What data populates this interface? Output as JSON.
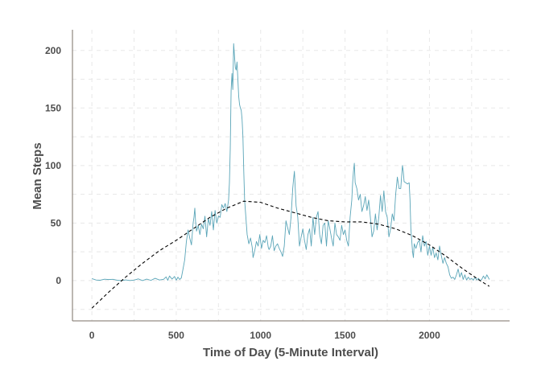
{
  "chart_data": {
    "type": "line",
    "title": "",
    "xlabel": "Time of Day (5-Minute Interval)",
    "ylabel": "Mean Steps",
    "xlim": [
      -115,
      2475
    ],
    "ylim": [
      -35,
      218
    ],
    "xticks": [
      0,
      500,
      1000,
      1500,
      2000
    ],
    "yticks": [
      0,
      50,
      100,
      150,
      200
    ],
    "grid": true,
    "legend": "none",
    "colors": {
      "observed": "#5aa5b8",
      "smooth": "#000000",
      "grid": "#e8e8e8",
      "axis": "#7a6f66",
      "text": "#4d4d4d"
    },
    "series": [
      {
        "style": "solid",
        "points": [
          [
            0,
            1.7
          ],
          [
            25,
            0.5
          ],
          [
            50,
            0.3
          ],
          [
            75,
            1.2
          ],
          [
            100,
            0.9
          ],
          [
            125,
            1.1
          ],
          [
            150,
            0.3
          ],
          [
            175,
            0.0
          ],
          [
            200,
            0.6
          ],
          [
            225,
            0.1
          ],
          [
            250,
            0.4
          ],
          [
            275,
            1.5
          ],
          [
            300,
            0.0
          ],
          [
            325,
            1.3
          ],
          [
            350,
            0.2
          ],
          [
            375,
            2.0
          ],
          [
            400,
            0.5
          ],
          [
            425,
            1.1
          ],
          [
            440,
            3.2
          ],
          [
            450,
            0.2
          ],
          [
            460,
            4.0
          ],
          [
            475,
            1.3
          ],
          [
            490,
            3.6
          ],
          [
            500,
            0.3
          ],
          [
            510,
            3.0
          ],
          [
            520,
            1.0
          ],
          [
            530,
            2.3
          ],
          [
            540,
            10.0
          ],
          [
            550,
            18.0
          ],
          [
            560,
            34.0
          ],
          [
            570,
            44.0
          ],
          [
            580,
            37.0
          ],
          [
            590,
            31.0
          ],
          [
            600,
            50.0
          ],
          [
            605,
            55.0
          ],
          [
            610,
            63.0
          ],
          [
            615,
            50.0
          ],
          [
            620,
            43.0
          ],
          [
            630,
            48.0
          ],
          [
            640,
            40.0
          ],
          [
            650,
            49.0
          ],
          [
            660,
            45.0
          ],
          [
            670,
            56.0
          ],
          [
            680,
            38.0
          ],
          [
            690,
            54.0
          ],
          [
            700,
            48.0
          ],
          [
            710,
            60.0
          ],
          [
            720,
            44.0
          ],
          [
            730,
            61.0
          ],
          [
            740,
            50.0
          ],
          [
            750,
            56.0
          ],
          [
            760,
            55.0
          ],
          [
            770,
            66.0
          ],
          [
            780,
            63.0
          ],
          [
            790,
            67.0
          ],
          [
            800,
            60.0
          ],
          [
            810,
            70.0
          ],
          [
            815,
            85.0
          ],
          [
            820,
            115.0
          ],
          [
            825,
            165.0
          ],
          [
            830,
            180.0
          ],
          [
            835,
            166.0
          ],
          [
            840,
            206.0
          ],
          [
            845,
            195.0
          ],
          [
            850,
            185.0
          ],
          [
            855,
            183.0
          ],
          [
            860,
            190.0
          ],
          [
            865,
            175.0
          ],
          [
            870,
            160.0
          ],
          [
            875,
            153.0
          ],
          [
            880,
            150.0
          ],
          [
            885,
            148.0
          ],
          [
            890,
            140.0
          ],
          [
            895,
            125.0
          ],
          [
            900,
            95.0
          ],
          [
            905,
            70.0
          ],
          [
            910,
            60.0
          ],
          [
            915,
            50.0
          ],
          [
            920,
            40.0
          ],
          [
            930,
            32.0
          ],
          [
            940,
            37.0
          ],
          [
            950,
            29.0
          ],
          [
            955,
            20.0
          ],
          [
            965,
            26.0
          ],
          [
            975,
            34.0
          ],
          [
            985,
            30.0
          ],
          [
            995,
            40.0
          ],
          [
            1005,
            28.0
          ],
          [
            1015,
            35.0
          ],
          [
            1025,
            33.0
          ],
          [
            1035,
            39.0
          ],
          [
            1045,
            29.0
          ],
          [
            1050,
            27.0
          ],
          [
            1060,
            30.0
          ],
          [
            1070,
            39.0
          ],
          [
            1080,
            26.0
          ],
          [
            1090,
            30.0
          ],
          [
            1100,
            32.0
          ],
          [
            1110,
            28.0
          ],
          [
            1120,
            25.0
          ],
          [
            1130,
            21.0
          ],
          [
            1140,
            30.0
          ],
          [
            1150,
            52.0
          ],
          [
            1160,
            46.0
          ],
          [
            1170,
            40.0
          ],
          [
            1180,
            55.0
          ],
          [
            1190,
            80.0
          ],
          [
            1195,
            88.0
          ],
          [
            1200,
            95.0
          ],
          [
            1205,
            80.0
          ],
          [
            1210,
            65.0
          ],
          [
            1220,
            55.0
          ],
          [
            1230,
            30.0
          ],
          [
            1240,
            38.0
          ],
          [
            1250,
            45.0
          ],
          [
            1260,
            35.0
          ],
          [
            1270,
            27.0
          ],
          [
            1280,
            40.0
          ],
          [
            1290,
            45.0
          ],
          [
            1300,
            30.0
          ],
          [
            1310,
            55.0
          ],
          [
            1320,
            40.0
          ],
          [
            1330,
            55.0
          ],
          [
            1340,
            60.0
          ],
          [
            1350,
            40.0
          ],
          [
            1360,
            32.0
          ],
          [
            1370,
            48.0
          ],
          [
            1380,
            50.0
          ],
          [
            1390,
            30.0
          ],
          [
            1400,
            52.0
          ],
          [
            1410,
            45.0
          ],
          [
            1420,
            37.0
          ],
          [
            1430,
            30.0
          ],
          [
            1440,
            50.0
          ],
          [
            1450,
            40.0
          ],
          [
            1460,
            38.0
          ],
          [
            1470,
            35.0
          ],
          [
            1480,
            48.0
          ],
          [
            1490,
            40.0
          ],
          [
            1500,
            44.0
          ],
          [
            1510,
            35.0
          ],
          [
            1520,
            30.0
          ],
          [
            1530,
            55.0
          ],
          [
            1540,
            70.0
          ],
          [
            1545,
            85.0
          ],
          [
            1550,
            95.0
          ],
          [
            1555,
            102.0
          ],
          [
            1560,
            85.0
          ],
          [
            1570,
            80.0
          ],
          [
            1580,
            70.0
          ],
          [
            1590,
            75.0
          ],
          [
            1600,
            60.0
          ],
          [
            1610,
            65.0
          ],
          [
            1620,
            73.0
          ],
          [
            1630,
            61.0
          ],
          [
            1640,
            70.0
          ],
          [
            1650,
            55.0
          ],
          [
            1660,
            38.0
          ],
          [
            1670,
            43.0
          ],
          [
            1680,
            58.0
          ],
          [
            1690,
            44.0
          ],
          [
            1700,
            55.0
          ],
          [
            1710,
            74.0
          ],
          [
            1720,
            60.0
          ],
          [
            1730,
            78.0
          ],
          [
            1740,
            60.0
          ],
          [
            1750,
            55.0
          ],
          [
            1760,
            38.0
          ],
          [
            1770,
            45.0
          ],
          [
            1780,
            58.0
          ],
          [
            1790,
            52.0
          ],
          [
            1800,
            75.0
          ],
          [
            1810,
            90.0
          ],
          [
            1820,
            80.0
          ],
          [
            1830,
            80.0
          ],
          [
            1840,
            100.0
          ],
          [
            1845,
            95.0
          ],
          [
            1850,
            86.0
          ],
          [
            1860,
            85.0
          ],
          [
            1870,
            84.0
          ],
          [
            1880,
            85.0
          ],
          [
            1885,
            70.0
          ],
          [
            1890,
            45.0
          ],
          [
            1895,
            35.0
          ],
          [
            1900,
            25.0
          ],
          [
            1905,
            20.0
          ],
          [
            1910,
            32.0
          ],
          [
            1920,
            28.0
          ],
          [
            1930,
            33.0
          ],
          [
            1940,
            35.0
          ],
          [
            1950,
            25.0
          ],
          [
            1960,
            39.0
          ],
          [
            1970,
            30.0
          ],
          [
            1980,
            34.0
          ],
          [
            1990,
            22.0
          ],
          [
            2000,
            30.0
          ],
          [
            2010,
            22.0
          ],
          [
            2020,
            29.0
          ],
          [
            2030,
            20.0
          ],
          [
            2040,
            24.0
          ],
          [
            2050,
            18.0
          ],
          [
            2060,
            30.0
          ],
          [
            2070,
            22.0
          ],
          [
            2080,
            15.0
          ],
          [
            2090,
            20.0
          ],
          [
            2100,
            15.0
          ],
          [
            2110,
            12.0
          ],
          [
            2120,
            5.0
          ],
          [
            2130,
            2.0
          ],
          [
            2140,
            3.0
          ],
          [
            2150,
            1.0
          ],
          [
            2160,
            5.0
          ],
          [
            2170,
            10.0
          ],
          [
            2180,
            3.0
          ],
          [
            2190,
            7.0
          ],
          [
            2200,
            1.0
          ],
          [
            2210,
            5.0
          ],
          [
            2220,
            0.5
          ],
          [
            2230,
            3.0
          ],
          [
            2240,
            1.0
          ],
          [
            2250,
            2.0
          ],
          [
            2260,
            0.3
          ],
          [
            2270,
            3.0
          ],
          [
            2280,
            0.5
          ],
          [
            2290,
            2.0
          ],
          [
            2300,
            0.0
          ],
          [
            2310,
            1.0
          ],
          [
            2320,
            4.0
          ],
          [
            2330,
            1.5
          ],
          [
            2340,
            5.0
          ],
          [
            2355,
            1.0
          ]
        ]
      },
      {
        "style": "dashed",
        "points": [
          [
            0,
            -24
          ],
          [
            100,
            -10
          ],
          [
            200,
            3
          ],
          [
            300,
            15
          ],
          [
            400,
            26
          ],
          [
            500,
            35
          ],
          [
            600,
            45
          ],
          [
            700,
            55
          ],
          [
            800,
            63
          ],
          [
            900,
            69
          ],
          [
            1000,
            68
          ],
          [
            1100,
            63
          ],
          [
            1200,
            59
          ],
          [
            1300,
            55
          ],
          [
            1400,
            52
          ],
          [
            1500,
            51
          ],
          [
            1600,
            51
          ],
          [
            1700,
            49
          ],
          [
            1800,
            45
          ],
          [
            1900,
            39
          ],
          [
            2000,
            31
          ],
          [
            2100,
            21
          ],
          [
            2200,
            10
          ],
          [
            2300,
            0
          ],
          [
            2355,
            -5
          ]
        ]
      }
    ]
  }
}
